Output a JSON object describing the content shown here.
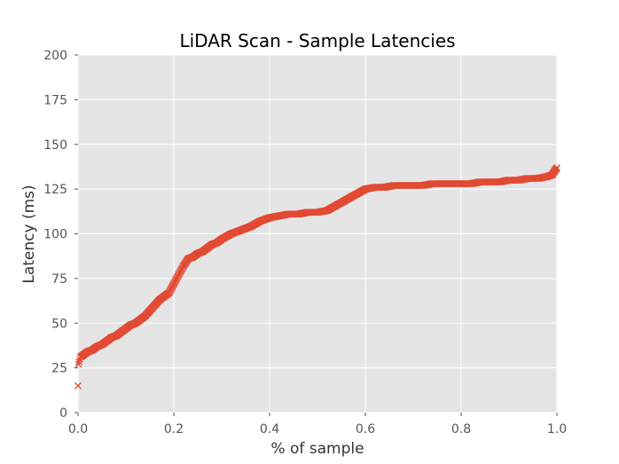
{
  "chart_data": {
    "type": "scatter",
    "title": "LiDAR Scan - Sample Latencies",
    "xlabel": "% of sample",
    "ylabel": "Latency (ms)",
    "xlim": [
      0.0,
      1.0
    ],
    "ylim": [
      0,
      200
    ],
    "xticks": [
      "0.0",
      "0.2",
      "0.4",
      "0.6",
      "0.8",
      "1.0"
    ],
    "yticks": [
      "0",
      "25",
      "50",
      "75",
      "100",
      "125",
      "150",
      "175",
      "200"
    ],
    "grid": true,
    "marker": "x",
    "colors": {
      "marker": "#E24A33",
      "plot_background": "#E5E5E5",
      "grid": "#FFFFFF"
    },
    "series": [
      {
        "x": [
          0.0,
          0.001,
          0.005,
          0.01,
          0.02,
          0.03,
          0.04,
          0.05,
          0.06,
          0.07,
          0.08,
          0.09,
          0.1,
          0.11,
          0.12,
          0.13,
          0.14,
          0.15,
          0.16,
          0.17,
          0.18,
          0.19,
          0.2,
          0.21,
          0.22,
          0.23,
          0.24,
          0.25,
          0.26,
          0.27,
          0.28,
          0.29,
          0.3,
          0.32,
          0.34,
          0.36,
          0.38,
          0.4,
          0.42,
          0.44,
          0.46,
          0.48,
          0.5,
          0.52,
          0.54,
          0.56,
          0.58,
          0.6,
          0.62,
          0.64,
          0.66,
          0.68,
          0.7,
          0.72,
          0.74,
          0.76,
          0.78,
          0.8,
          0.82,
          0.84,
          0.86,
          0.88,
          0.9,
          0.92,
          0.94,
          0.96,
          0.98,
          0.99,
          0.995,
          1.0
        ],
        "y": [
          15,
          27,
          31,
          32,
          34,
          35,
          37,
          38,
          40,
          42,
          43,
          45,
          47,
          49,
          50,
          52,
          54,
          57,
          60,
          63,
          65,
          67,
          72,
          77,
          82,
          86,
          87,
          89,
          90,
          92,
          94,
          95,
          97,
          100,
          102,
          104,
          107,
          109,
          110,
          111,
          111,
          112,
          112,
          113,
          116,
          119,
          122,
          125,
          126,
          126,
          127,
          127,
          127,
          127,
          128,
          128,
          128,
          128,
          128,
          129,
          129,
          129,
          130,
          130,
          131,
          131,
          132,
          133,
          135,
          137
        ]
      }
    ]
  }
}
